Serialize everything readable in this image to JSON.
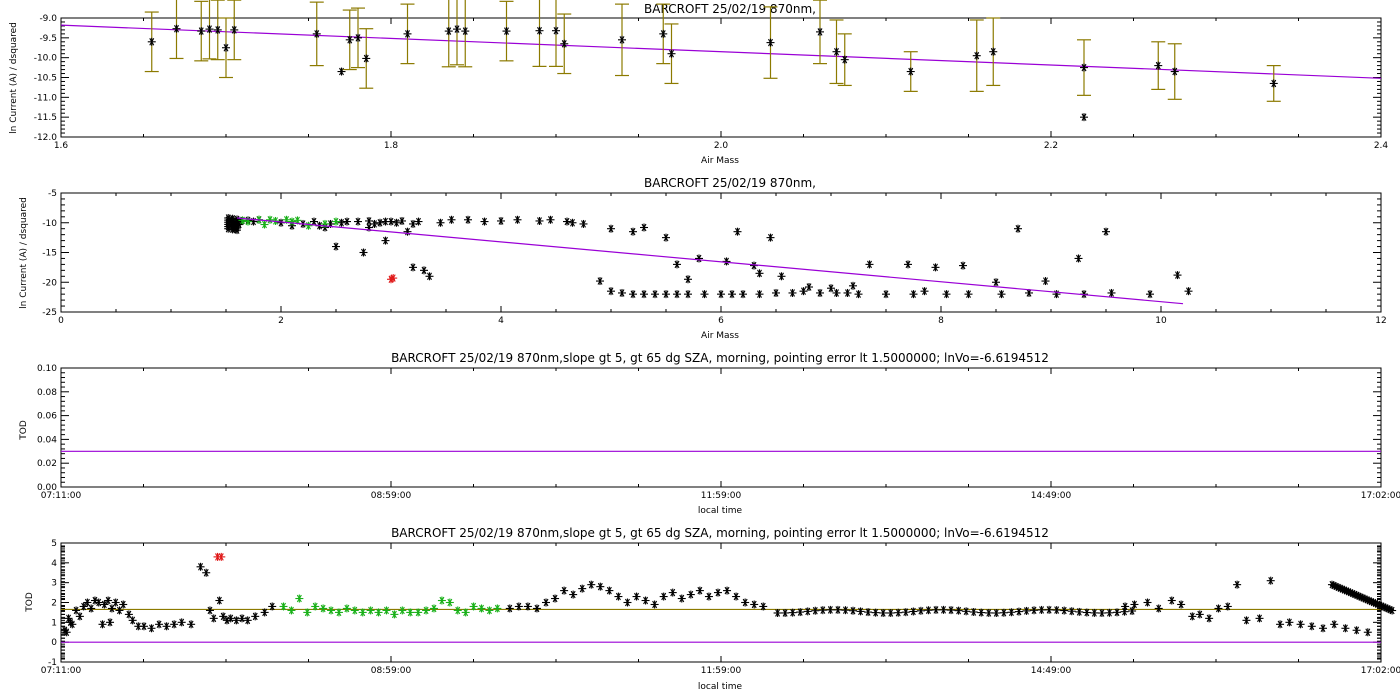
{
  "colors": {
    "fit": "#9a00d6",
    "errbar": "#8c7a00",
    "marker": "#000000",
    "green": "#18b018",
    "red": "#e01818",
    "hline_olive": "#8c7a00"
  },
  "chart_data": [
    {
      "type": "scatter",
      "title": "BARCROFT 25/02/19 870nm,",
      "xlabel": "Air Mass",
      "ylabel": "ln Current (A) / dsquared",
      "xlim": [
        1.6,
        2.4
      ],
      "ylim": [
        -12.0,
        -9.0
      ],
      "xticks": [
        "1.6",
        "1.8",
        "2.0",
        "2.2",
        "2.4"
      ],
      "yticks": [
        "-9.0",
        "-9.5",
        "-10.0",
        "-10.5",
        "-11.0",
        "-11.5",
        "-12.0"
      ],
      "fit_line": [
        [
          1.6,
          -9.18
        ],
        [
          2.4,
          -10.52
        ]
      ],
      "points": [
        {
          "x": 1.655,
          "y": -9.6,
          "err": 0.75
        },
        {
          "x": 1.67,
          "y": -9.27,
          "err": 0.75
        },
        {
          "x": 1.685,
          "y": -9.33,
          "err": 0.75
        },
        {
          "x": 1.69,
          "y": -9.28,
          "err": 0.75
        },
        {
          "x": 1.695,
          "y": -9.3,
          "err": 0.75
        },
        {
          "x": 1.7,
          "y": -9.75,
          "err": 0.75
        },
        {
          "x": 1.705,
          "y": -9.3,
          "err": 0.75
        },
        {
          "x": 1.755,
          "y": -9.4,
          "err": 0.8
        },
        {
          "x": 1.77,
          "y": -10.35
        },
        {
          "x": 1.775,
          "y": -9.55,
          "err": 0.75
        },
        {
          "x": 1.78,
          "y": -9.5,
          "err": 0.75
        },
        {
          "x": 1.785,
          "y": -10.02,
          "err": 0.75
        },
        {
          "x": 1.81,
          "y": -9.4,
          "err": 0.75
        },
        {
          "x": 1.835,
          "y": -9.33,
          "err": 0.9
        },
        {
          "x": 1.84,
          "y": -9.28,
          "err": 0.9
        },
        {
          "x": 1.845,
          "y": -9.33,
          "err": 0.9
        },
        {
          "x": 1.87,
          "y": -9.33,
          "err": 0.75
        },
        {
          "x": 1.89,
          "y": -9.32,
          "err": 0.9
        },
        {
          "x": 1.9,
          "y": -9.32,
          "err": 0.9
        },
        {
          "x": 1.905,
          "y": -9.65,
          "err": 0.75
        },
        {
          "x": 1.94,
          "y": -9.55,
          "err": 0.9
        },
        {
          "x": 1.965,
          "y": -9.4,
          "err": 0.75
        },
        {
          "x": 1.97,
          "y": -9.9,
          "err": 0.75
        },
        {
          "x": 2.03,
          "y": -9.62,
          "err": 0.9
        },
        {
          "x": 2.06,
          "y": -9.35,
          "err": 0.8
        },
        {
          "x": 2.07,
          "y": -9.85,
          "err": 0.8
        },
        {
          "x": 2.075,
          "y": -10.05,
          "err": 0.65
        },
        {
          "x": 2.115,
          "y": -10.35,
          "err": 0.5
        },
        {
          "x": 2.155,
          "y": -9.95,
          "err": 0.9
        },
        {
          "x": 2.165,
          "y": -9.85,
          "err": 0.85
        },
        {
          "x": 2.22,
          "y": -11.5
        },
        {
          "x": 2.22,
          "y": -10.25,
          "err": 0.7
        },
        {
          "x": 2.265,
          "y": -10.2,
          "err": 0.6
        },
        {
          "x": 2.275,
          "y": -10.35,
          "err": 0.7
        },
        {
          "x": 2.335,
          "y": -10.65,
          "err": 0.45
        }
      ]
    },
    {
      "type": "scatter",
      "title": "BARCROFT 25/02/19 870nm,",
      "xlabel": "Air Mass",
      "ylabel": "ln Current (A) / dsquared",
      "xlim": [
        0,
        12
      ],
      "ylim": [
        -25,
        -5
      ],
      "xticks": [
        "0",
        "2",
        "4",
        "6",
        "8",
        "10",
        "12"
      ],
      "yticks": [
        "-5",
        "-10",
        "-15",
        "-20",
        "-25"
      ],
      "fit_line": [
        [
          1.6,
          -9.2
        ],
        [
          10.2,
          -23.6
        ]
      ],
      "points_black": [
        [
          1.55,
          -9.5
        ],
        [
          1.56,
          -10
        ],
        [
          1.57,
          -10.5
        ],
        [
          1.58,
          -11
        ],
        [
          1.6,
          -9.8
        ],
        [
          1.62,
          -10.3
        ],
        [
          1.64,
          -9.7
        ],
        [
          1.7,
          -9.6
        ],
        [
          1.75,
          -9.8
        ],
        [
          1.8,
          -9.5
        ],
        [
          2.0,
          -10
        ],
        [
          2.1,
          -10.5
        ],
        [
          2.2,
          -10.2
        ],
        [
          2.3,
          -9.8
        ],
        [
          2.35,
          -10.5
        ],
        [
          2.4,
          -10.8
        ],
        [
          2.45,
          -10.2
        ],
        [
          2.5,
          -14
        ],
        [
          2.55,
          -10
        ],
        [
          2.6,
          -9.8
        ],
        [
          2.7,
          -9.8
        ],
        [
          2.8,
          -9.7
        ],
        [
          2.8,
          -10.8
        ],
        [
          2.85,
          -10.2
        ],
        [
          2.9,
          -10
        ],
        [
          2.95,
          -9.8
        ],
        [
          3.0,
          -9.8
        ],
        [
          3.05,
          -10
        ],
        [
          3.1,
          -9.7
        ],
        [
          2.95,
          -13
        ],
        [
          2.75,
          -15
        ],
        [
          3.15,
          -11.5
        ],
        [
          3.2,
          -10.2
        ],
        [
          3.25,
          -9.8
        ],
        [
          3.2,
          -17.5
        ],
        [
          3.35,
          -19
        ],
        [
          3.3,
          -18
        ],
        [
          3.45,
          -10
        ],
        [
          3.55,
          -9.5
        ],
        [
          3.7,
          -9.5
        ],
        [
          3.85,
          -9.8
        ],
        [
          4.0,
          -9.7
        ],
        [
          4.15,
          -9.5
        ],
        [
          4.35,
          -9.7
        ],
        [
          4.45,
          -9.5
        ],
        [
          4.6,
          -9.8
        ],
        [
          4.75,
          -10.2
        ],
        [
          4.65,
          -10
        ],
        [
          5.0,
          -11
        ],
        [
          5.2,
          -11.5
        ],
        [
          5.3,
          -10.8
        ],
        [
          5.5,
          -12.5
        ],
        [
          5.6,
          -17
        ],
        [
          5.7,
          -19.5
        ],
        [
          5.8,
          -16
        ],
        [
          6.05,
          -16.5
        ],
        [
          6.15,
          -11.5
        ],
        [
          6.3,
          -17.2
        ],
        [
          6.35,
          -18.5
        ],
        [
          6.45,
          -12.5
        ],
        [
          6.55,
          -19
        ],
        [
          6.8,
          -20.8
        ],
        [
          7.0,
          -21
        ],
        [
          7.2,
          -20.6
        ],
        [
          7.35,
          -17
        ],
        [
          7.7,
          -17
        ],
        [
          7.95,
          -17.5
        ],
        [
          8.2,
          -17.2
        ],
        [
          8.5,
          -20
        ],
        [
          8.7,
          -11
        ],
        [
          8.95,
          -19.8
        ],
        [
          9.25,
          -16
        ],
        [
          9.5,
          -11.5
        ],
        [
          10.15,
          -18.8
        ],
        [
          10.25,
          -21.5
        ],
        [
          4.9,
          -19.8
        ],
        [
          5.0,
          -21.5
        ],
        [
          5.1,
          -21.8
        ],
        [
          5.2,
          -22
        ],
        [
          5.3,
          -22
        ],
        [
          5.4,
          -22
        ],
        [
          5.5,
          -22
        ],
        [
          5.6,
          -22
        ],
        [
          5.7,
          -22
        ],
        [
          5.85,
          -22
        ],
        [
          6.0,
          -22
        ],
        [
          6.1,
          -22
        ],
        [
          6.2,
          -22
        ],
        [
          6.35,
          -22
        ],
        [
          6.5,
          -21.8
        ],
        [
          6.65,
          -21.8
        ],
        [
          6.75,
          -21.5
        ],
        [
          6.9,
          -21.8
        ],
        [
          7.05,
          -21.8
        ],
        [
          7.15,
          -21.8
        ],
        [
          7.25,
          -22
        ],
        [
          7.5,
          -22
        ],
        [
          7.75,
          -22
        ],
        [
          7.85,
          -21.5
        ],
        [
          8.05,
          -22
        ],
        [
          8.25,
          -22
        ],
        [
          8.55,
          -22
        ],
        [
          8.8,
          -21.8
        ],
        [
          9.05,
          -22
        ],
        [
          9.3,
          -22
        ],
        [
          9.55,
          -21.8
        ],
        [
          9.9,
          -22
        ]
      ],
      "points_green": [
        [
          1.65,
          -9.6
        ],
        [
          1.7,
          -9.8
        ],
        [
          1.8,
          -9.5
        ],
        [
          1.85,
          -10.3
        ],
        [
          1.9,
          -9.5
        ],
        [
          1.95,
          -9.7
        ],
        [
          2.05,
          -9.5
        ],
        [
          2.1,
          -9.8
        ],
        [
          2.15,
          -9.6
        ],
        [
          2.25,
          -10.5
        ],
        [
          2.4,
          -10.2
        ],
        [
          2.5,
          -9.8
        ]
      ],
      "points_red": [
        [
          3.0,
          -19.5
        ],
        [
          3.02,
          -19.3
        ]
      ]
    },
    {
      "type": "line",
      "title": "BARCROFT 25/02/19 870nm,slope gt 5, gt 65 dg SZA, morning, pointing error lt 1.5000000; lnVo=-6.6194512",
      "xlabel": "local time",
      "ylabel": "TOD",
      "xlim": [
        0,
        7000
      ],
      "ylim": [
        0.0,
        0.1
      ],
      "xticks": [
        "07:11:00",
        "08:59:00",
        "11:59:00",
        "14:49:00",
        "17:02:00"
      ],
      "yticks": [
        "0.10",
        "0.08",
        "0.06",
        "0.04",
        "0.02",
        "0.00"
      ],
      "hline": 0.03
    },
    {
      "type": "scatter",
      "title": "BARCROFT 25/02/19 870nm,slope gt 5, gt 65 dg SZA, morning, pointing error lt 1.5000000; lnVo=-6.6194512",
      "xlabel": "local time",
      "ylabel": "TOD",
      "xlim": [
        0,
        7000
      ],
      "ylim": [
        -1,
        5
      ],
      "xticks": [
        "07:11:00",
        "08:59:00",
        "11:59:00",
        "14:49:00",
        "17:02:00"
      ],
      "yticks": [
        "5",
        "4",
        "3",
        "2",
        "1",
        "0",
        "-1"
      ],
      "hline_olive": 1.65,
      "hline_purple": 0.0
    }
  ]
}
